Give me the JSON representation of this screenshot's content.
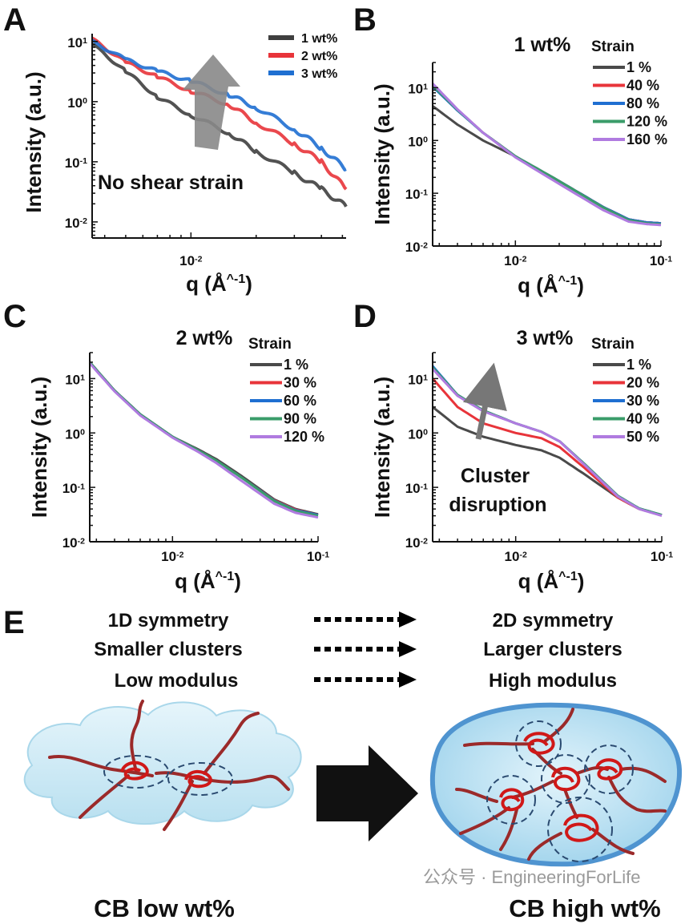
{
  "panel_labels": [
    "A",
    "B",
    "C",
    "D",
    "E"
  ],
  "chart_data": [
    {
      "type": "line",
      "panel": "A",
      "title": "",
      "xlabel": "q (Å^-1)",
      "ylabel": "Intensity (a.u.)",
      "xscale": "log",
      "yscale": "log",
      "xlim": [
        0.0035,
        0.052
      ],
      "ylim": [
        0.0054,
        13.5
      ],
      "xticks": [
        "10^-2"
      ],
      "yticks": [
        "10^1",
        "10^0",
        "10^-1",
        "10^-2"
      ],
      "legend_title": "",
      "legend_position": "top-right",
      "annotation": "No shear strain",
      "series": [
        {
          "name": "1 wt%",
          "color": "#3f3f3f",
          "x": [
            0.0035,
            0.005,
            0.007,
            0.01,
            0.015,
            0.02,
            0.03,
            0.04,
            0.052
          ],
          "y": [
            9,
            3.2,
            1.2,
            0.6,
            0.3,
            0.15,
            0.065,
            0.035,
            0.018
          ]
        },
        {
          "name": "2 wt%",
          "color": "#e8343a",
          "x": [
            0.0035,
            0.005,
            0.007,
            0.01,
            0.015,
            0.02,
            0.03,
            0.04,
            0.052
          ],
          "y": [
            11,
            4.5,
            2.6,
            1.5,
            0.9,
            0.45,
            0.2,
            0.1,
            0.035
          ]
        },
        {
          "name": "3 wt%",
          "color": "#1f6fd1",
          "x": [
            0.0035,
            0.005,
            0.007,
            0.01,
            0.015,
            0.02,
            0.03,
            0.04,
            0.052
          ],
          "y": [
            10,
            5,
            3.2,
            2.2,
            1.3,
            0.8,
            0.35,
            0.17,
            0.075
          ]
        }
      ]
    },
    {
      "type": "line",
      "panel": "B",
      "title": "1 wt%",
      "xlabel": "q (Å^-1)",
      "ylabel": "Intensity (a.u.)",
      "xscale": "log",
      "yscale": "log",
      "xlim": [
        0.0027,
        0.1
      ],
      "ylim": [
        0.01,
        30
      ],
      "xticks": [
        "10^-2",
        "10^-1"
      ],
      "yticks": [
        "10^1",
        "10^0",
        "10^-1",
        "10^-2"
      ],
      "legend_title": "Strain",
      "legend_position": "top-right",
      "series": [
        {
          "name": "1 %",
          "color": "#4a4a4a",
          "x": [
            0.0027,
            0.004,
            0.006,
            0.01,
            0.02,
            0.04,
            0.06,
            0.08,
            0.1
          ],
          "y": [
            4.5,
            2,
            1,
            0.5,
            0.17,
            0.055,
            0.032,
            0.028,
            0.027
          ]
        },
        {
          "name": "40 %",
          "color": "#e8343a",
          "x": [
            0.0027,
            0.004,
            0.006,
            0.01,
            0.02,
            0.04,
            0.06,
            0.08,
            0.1
          ],
          "y": [
            11,
            3.8,
            1.4,
            0.5,
            0.17,
            0.055,
            0.032,
            0.028,
            0.027
          ]
        },
        {
          "name": "80 %",
          "color": "#1f6fd1",
          "x": [
            0.0027,
            0.004,
            0.006,
            0.01,
            0.02,
            0.04,
            0.06,
            0.08,
            0.1
          ],
          "y": [
            10.5,
            3.7,
            1.4,
            0.5,
            0.17,
            0.055,
            0.032,
            0.028,
            0.027
          ]
        },
        {
          "name": "120 %",
          "color": "#3a9c6a",
          "x": [
            0.0027,
            0.004,
            0.006,
            0.01,
            0.02,
            0.04,
            0.06,
            0.08,
            0.1
          ],
          "y": [
            11,
            3.8,
            1.4,
            0.5,
            0.17,
            0.054,
            0.031,
            0.027,
            0.026
          ]
        },
        {
          "name": "160 %",
          "color": "#b07be0",
          "x": [
            0.0027,
            0.004,
            0.006,
            0.01,
            0.02,
            0.04,
            0.06,
            0.08,
            0.1
          ],
          "y": [
            12,
            3.9,
            1.4,
            0.48,
            0.15,
            0.048,
            0.029,
            0.026,
            0.025
          ]
        }
      ]
    },
    {
      "type": "line",
      "panel": "C",
      "title": "2 wt%",
      "xlabel": "q (Å^-1)",
      "ylabel": "Intensity (a.u.)",
      "xscale": "log",
      "yscale": "log",
      "xlim": [
        0.0027,
        0.1
      ],
      "ylim": [
        0.01,
        30
      ],
      "xticks": [
        "10^-2",
        "10^-1"
      ],
      "yticks": [
        "10^1",
        "10^0",
        "10^-1",
        "10^-2"
      ],
      "legend_title": "Strain",
      "legend_position": "top-right",
      "series": [
        {
          "name": "1 %",
          "color": "#4a4a4a",
          "x": [
            0.0027,
            0.004,
            0.006,
            0.01,
            0.015,
            0.02,
            0.03,
            0.05,
            0.07,
            0.1
          ],
          "y": [
            20,
            6,
            2.2,
            0.85,
            0.5,
            0.33,
            0.16,
            0.06,
            0.04,
            0.032
          ]
        },
        {
          "name": "30 %",
          "color": "#e8343a",
          "x": [
            0.0027,
            0.004,
            0.006,
            0.01,
            0.015,
            0.02,
            0.03,
            0.05,
            0.07,
            0.1
          ],
          "y": [
            20,
            6,
            2.2,
            0.85,
            0.48,
            0.31,
            0.15,
            0.058,
            0.039,
            0.031
          ]
        },
        {
          "name": "60 %",
          "color": "#1f6fd1",
          "x": [
            0.0027,
            0.004,
            0.006,
            0.01,
            0.015,
            0.02,
            0.03,
            0.05,
            0.07,
            0.1
          ],
          "y": [
            20,
            6,
            2.2,
            0.85,
            0.48,
            0.31,
            0.15,
            0.057,
            0.038,
            0.031
          ]
        },
        {
          "name": "90 %",
          "color": "#3a9c6a",
          "x": [
            0.0027,
            0.004,
            0.006,
            0.01,
            0.015,
            0.02,
            0.03,
            0.05,
            0.07,
            0.1
          ],
          "y": [
            20,
            6,
            2.2,
            0.85,
            0.48,
            0.31,
            0.15,
            0.056,
            0.037,
            0.03
          ]
        },
        {
          "name": "120 %",
          "color": "#b07be0",
          "x": [
            0.0027,
            0.004,
            0.006,
            0.01,
            0.015,
            0.02,
            0.03,
            0.05,
            0.07,
            0.1
          ],
          "y": [
            19,
            5.8,
            2.1,
            0.82,
            0.45,
            0.28,
            0.13,
            0.05,
            0.034,
            0.028
          ]
        }
      ]
    },
    {
      "type": "line",
      "panel": "D",
      "title": "3 wt%",
      "xlabel": "q (Å^-1)",
      "ylabel": "Intensity (a.u.)",
      "xscale": "log",
      "yscale": "log",
      "xlim": [
        0.0027,
        0.1
      ],
      "ylim": [
        0.01,
        30
      ],
      "xticks": [
        "10^-2",
        "10^-1"
      ],
      "yticks": [
        "10^1",
        "10^0",
        "10^-1",
        "10^-2"
      ],
      "legend_title": "Strain",
      "legend_position": "top-right",
      "annotation": "Cluster disruption",
      "series": [
        {
          "name": "1 %",
          "color": "#4a4a4a",
          "x": [
            0.0027,
            0.004,
            0.006,
            0.01,
            0.015,
            0.02,
            0.03,
            0.05,
            0.07,
            0.1
          ],
          "y": [
            3,
            1.3,
            0.85,
            0.6,
            0.48,
            0.35,
            0.17,
            0.065,
            0.04,
            0.031
          ]
        },
        {
          "name": "20 %",
          "color": "#e8343a",
          "x": [
            0.0027,
            0.004,
            0.006,
            0.01,
            0.015,
            0.02,
            0.03,
            0.05,
            0.07,
            0.1
          ],
          "y": [
            10,
            3,
            1.5,
            1,
            0.8,
            0.55,
            0.22,
            0.065,
            0.04,
            0.031
          ]
        },
        {
          "name": "30 %",
          "color": "#1f6fd1",
          "x": [
            0.0027,
            0.004,
            0.006,
            0.01,
            0.015,
            0.02,
            0.03,
            0.05,
            0.07,
            0.1
          ],
          "y": [
            17,
            5,
            2.6,
            1.5,
            1.05,
            0.7,
            0.26,
            0.07,
            0.041,
            0.031
          ]
        },
        {
          "name": "40 %",
          "color": "#3a9c6a",
          "x": [
            0.0027,
            0.004,
            0.006,
            0.01,
            0.015,
            0.02,
            0.03,
            0.05,
            0.07,
            0.1
          ],
          "y": [
            16,
            5,
            2.6,
            1.5,
            1.05,
            0.7,
            0.26,
            0.07,
            0.041,
            0.031
          ]
        },
        {
          "name": "50 %",
          "color": "#b07be0",
          "x": [
            0.0027,
            0.004,
            0.006,
            0.01,
            0.015,
            0.02,
            0.03,
            0.05,
            0.07,
            0.1
          ],
          "y": [
            15,
            4.8,
            2.5,
            1.5,
            1.05,
            0.7,
            0.25,
            0.068,
            0.04,
            0.03
          ]
        }
      ]
    }
  ],
  "panel_e": {
    "left_column": [
      "1D symmetry",
      "Smaller clusters",
      "Low modulus"
    ],
    "right_column": [
      "2D symmetry",
      "Larger clusters",
      "High modulus"
    ],
    "left_caption": "CB low wt%",
    "right_caption": "CB high wt%"
  },
  "watermark": "公众号 · EngineeringForLife"
}
